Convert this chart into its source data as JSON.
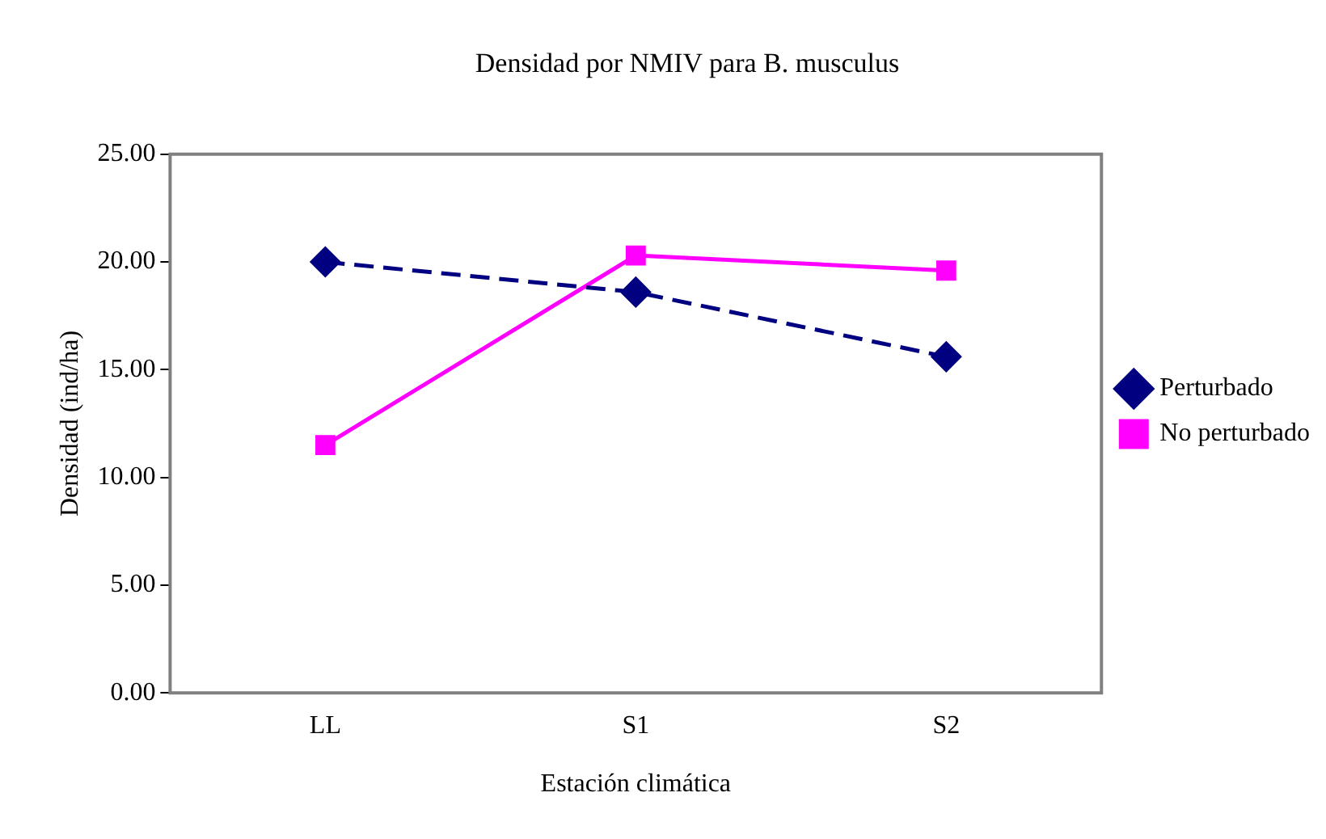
{
  "chart_data": {
    "type": "line",
    "title": "Densidad por NMIV para B. musculus",
    "xlabel": "Estación climática",
    "ylabel": "Densidad (ind/ha)",
    "categories": [
      "LL",
      "S1",
      "S2"
    ],
    "series": [
      {
        "name": "Perturbado",
        "color": "#000080",
        "values": [
          20.0,
          18.6,
          15.6
        ],
        "marker": "diamond",
        "line_style": "dashed"
      },
      {
        "name": "No perturbado",
        "color": "#ff00ff",
        "values": [
          11.5,
          20.3,
          19.6
        ],
        "marker": "square",
        "line_style": "solid"
      }
    ],
    "ylim": [
      0,
      25
    ],
    "yticks": [
      {
        "value": 0,
        "label": "0.00"
      },
      {
        "value": 5,
        "label": "5.00"
      },
      {
        "value": 10,
        "label": "10.00"
      },
      {
        "value": 15,
        "label": "15.00"
      },
      {
        "value": 20,
        "label": "20.00"
      },
      {
        "value": 25,
        "label": "25.00"
      }
    ],
    "grid": false,
    "legend": "right"
  }
}
